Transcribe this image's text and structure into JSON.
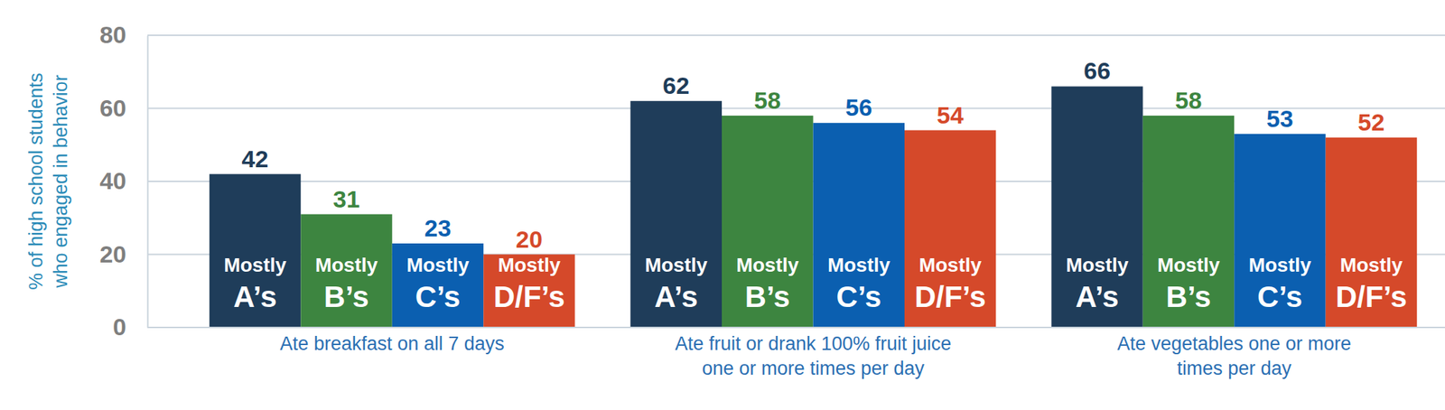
{
  "chart_data": {
    "type": "bar",
    "y_label": "% of high school students\nwho engaged in behavior",
    "categories": [
      "Ate breakfast on all 7 days",
      "Ate fruit or drank 100% fruit juice\none or more times per day",
      "Ate vegetables one or more\ntimes per day"
    ],
    "series": [
      {
        "name": "Mostly A’s",
        "color": "#1f3d5a",
        "values": [
          42,
          62,
          66
        ]
      },
      {
        "name": "Mostly B’s",
        "color": "#3d8540",
        "values": [
          31,
          58,
          58
        ]
      },
      {
        "name": "Mostly C’s",
        "color": "#0b5fb0",
        "values": [
          23,
          56,
          53
        ]
      },
      {
        "name": "Mostly D/F’s",
        "color": "#d5492a",
        "values": [
          20,
          54,
          52
        ]
      }
    ],
    "ylim": [
      0,
      80
    ],
    "yticks": [
      0,
      20,
      40,
      60,
      80
    ],
    "grid": true,
    "data_labels": true
  }
}
